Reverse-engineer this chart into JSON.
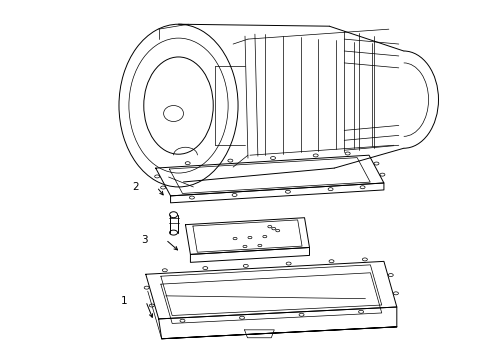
{
  "background_color": "#ffffff",
  "line_color": "#000000",
  "line_width": 0.7,
  "fig_width": 4.89,
  "fig_height": 3.6,
  "dpi": 100
}
